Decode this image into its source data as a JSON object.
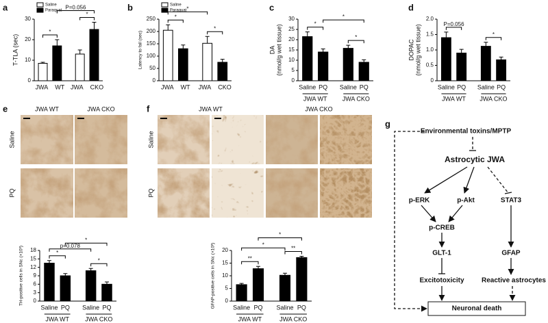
{
  "panel_labels": [
    "a",
    "b",
    "c",
    "d",
    "e",
    "f",
    "g"
  ],
  "chart_data": [
    {
      "type": "bar",
      "ylabel": [
        "T-TLA (sec)"
      ],
      "categories": [
        "JWA WT",
        "JWA CKO"
      ],
      "series": [
        {
          "name": "Saline",
          "color": "#ffffff",
          "values": [
            8.5,
            13
          ],
          "errors": [
            0.5,
            2
          ]
        },
        {
          "name": "Paraquat",
          "color": "#000000",
          "values": [
            17,
            25
          ],
          "errors": [
            3,
            3.5
          ]
        }
      ],
      "ylim": [
        0,
        30
      ],
      "yticks": [
        0,
        10,
        20,
        30
      ],
      "annotations": [
        "*",
        "P=0.056",
        "*"
      ]
    },
    {
      "type": "bar",
      "ylabel": [
        "Latency to fall (sec)"
      ],
      "categories": [
        "JWA WT",
        "JWA CKO"
      ],
      "series": [
        {
          "name": "Saline",
          "color": "#ffffff",
          "values": [
            205,
            152
          ],
          "errors": [
            22,
            28
          ]
        },
        {
          "name": "Paraquat",
          "color": "#000000",
          "values": [
            130,
            75
          ],
          "errors": [
            15,
            12
          ]
        }
      ],
      "ylim": [
        0,
        250
      ],
      "yticks": [
        0,
        50,
        100,
        150,
        200,
        250
      ],
      "annotations": [
        "*",
        "*",
        "*"
      ]
    },
    {
      "type": "bar",
      "ylabel": [
        "DA",
        "(nmol/g wet tissue)"
      ],
      "categories": [
        "Saline",
        "PQ",
        "Saline",
        "PQ"
      ],
      "groups": [
        "JWA WT",
        "JWA CKO"
      ],
      "series": [
        {
          "color": "#000000",
          "values": [
            21.5,
            14,
            15.8,
            9
          ],
          "errors": [
            2.3,
            1.5,
            1.5,
            1.2
          ]
        }
      ],
      "ylim": [
        0,
        30
      ],
      "yticks": [
        0,
        5,
        10,
        15,
        20,
        25,
        30
      ],
      "annotations": [
        "*",
        "*",
        "*"
      ]
    },
    {
      "type": "bar",
      "ylabel": [
        "DOPAC",
        "(nmol/g wet tissue)"
      ],
      "categories": [
        "Saline",
        "PQ",
        "Saline",
        "PQ"
      ],
      "groups": [
        "JWA WT",
        "JWA CKO"
      ],
      "series": [
        {
          "color": "#000000",
          "values": [
            1.4,
            0.9,
            1.12,
            0.68
          ],
          "errors": [
            0.18,
            0.12,
            0.13,
            0.09
          ]
        }
      ],
      "ylim": [
        0,
        2
      ],
      "yticks": [
        0,
        0.5,
        {
          "value": 1,
          "label": "1.0"
        },
        1.5,
        {
          "value": 2,
          "label": "2.0"
        }
      ],
      "annotations": [
        "P=0.056",
        "*"
      ]
    },
    {
      "type": "bar",
      "ylabel": [
        "TH-positive cells in SNc (×10³)"
      ],
      "categories": [
        "Saline",
        "PQ",
        "Saline",
        "PQ"
      ],
      "groups": [
        "JWA WT",
        "JWA CKO"
      ],
      "series": [
        {
          "color": "#000000",
          "values": [
            13.5,
            9,
            10.8,
            6
          ],
          "errors": [
            0.9,
            0.8,
            0.8,
            0.8
          ]
        }
      ],
      "ylim": [
        0,
        18
      ],
      "yticks": [
        0,
        3,
        6,
        9,
        12,
        15,
        18
      ],
      "annotations": [
        "*",
        "p=0.078",
        "*",
        "*"
      ]
    },
    {
      "type": "bar",
      "ylabel": [
        "GFAP-positive cells in SNc (×10³)"
      ],
      "categories": [
        "Saline",
        "PQ",
        "Saline",
        "PQ"
      ],
      "groups": [
        "JWA WT",
        "JWA CKO"
      ],
      "series": [
        {
          "color": "#000000",
          "values": [
            6.5,
            12.8,
            10.2,
            17.2
          ],
          "errors": [
            0.5,
            0.9,
            0.8,
            0.5
          ]
        }
      ],
      "ylim": [
        0,
        20
      ],
      "yticks": [
        0,
        5,
        10,
        15,
        20
      ],
      "annotations": [
        "*",
        "*",
        "**",
        "**"
      ]
    }
  ],
  "micrographs": [
    {
      "columns": [
        "JWA WT",
        "JWA CKO"
      ],
      "rows": [
        "Saline",
        "PQ"
      ]
    },
    {
      "columns": [
        "JWA WT",
        "JWA CKO"
      ],
      "rows": [
        "Saline",
        "PQ"
      ]
    }
  ],
  "diagram": {
    "nodes": [
      "Environmental toxins/MPTP",
      "Astrocytic JWA",
      "p-ERK",
      "p-Akt",
      "STAT3",
      "p-CREB",
      "GLT-1",
      "GFAP",
      "Excitotoxicity",
      "Reactive astrocytes",
      "Neuronal death"
    ]
  }
}
